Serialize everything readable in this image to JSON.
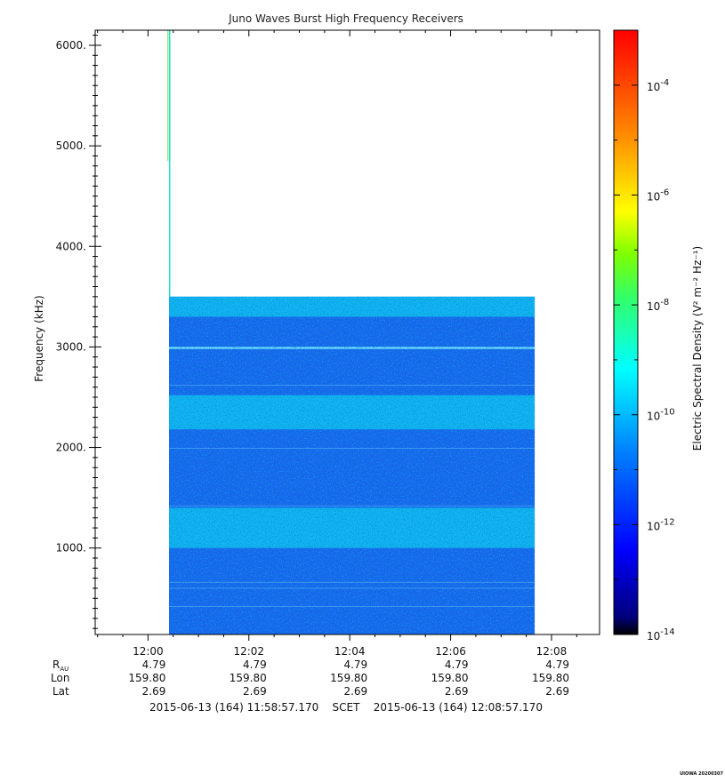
{
  "chart_data": {
    "type": "heatmap",
    "title": "Juno Waves Burst High Frequency Receivers",
    "ylabel": "Frequency (kHz)",
    "colorbar_label": "Electric Spectral Density (V² m⁻² Hz⁻¹)",
    "xlim": [
      "11:58:57.170",
      "12:08:57.170"
    ],
    "ylim": [
      140,
      6150
    ],
    "x_ticks": [
      "12:00",
      "12:02",
      "12:04",
      "12:06",
      "12:08"
    ],
    "y_ticks": [
      "1000.",
      "2000.",
      "3000.",
      "4000.",
      "5000.",
      "6000."
    ],
    "y_tick_values": [
      1000,
      2000,
      3000,
      4000,
      5000,
      6000
    ],
    "colorbar": {
      "scale": "log",
      "range": [
        1e-14,
        0.001
      ],
      "tick_base": "10",
      "tick_exponents": [
        "-14",
        "-12",
        "-10",
        "-8",
        "-6",
        "-4"
      ],
      "colormap": [
        "#00007f",
        "#0000ff",
        "#007fff",
        "#00ffff",
        "#7fff7f",
        "#ffff00",
        "#ff7f00",
        "#ff0000"
      ]
    },
    "data_region": {
      "time_start": "12:00:25",
      "time_end": "12:07:40",
      "freq_min_khz": 140,
      "freq_max_khz": 3500,
      "narrow_column_freq_max_khz": 6150
    },
    "bands": [
      {
        "freq_khz": [
          2180,
          2520
        ],
        "level": "1e-11"
      },
      {
        "freq_khz": [
          1000,
          1400
        ],
        "level": "1e-11"
      },
      {
        "freq_khz": [
          3300,
          3500
        ],
        "level": "1e-11.5"
      },
      {
        "freq_khz": [
          2980,
          3000
        ],
        "level": "1e-10.5",
        "note": "narrow line"
      }
    ],
    "ephemeris": {
      "labels": {
        "r_main": "R",
        "r_sub": "AU",
        "lon": "Lon",
        "lat": "Lat"
      },
      "columns": [
        {
          "time": "12:00",
          "r": "4.79",
          "lon": "159.80",
          "lat": "2.69"
        },
        {
          "time": "12:02",
          "r": "4.79",
          "lon": "159.80",
          "lat": "2.69"
        },
        {
          "time": "12:04",
          "r": "4.79",
          "lon": "159.80",
          "lat": "2.69"
        },
        {
          "time": "12:06",
          "r": "4.79",
          "lon": "159.80",
          "lat": "2.69"
        },
        {
          "time": "12:08",
          "r": "4.79",
          "lon": "159.80",
          "lat": "2.69"
        }
      ]
    },
    "time_range_text": "2015-06-13 (164) 11:58:57.170    SCET    2015-06-13 (164) 12:08:57.170",
    "stamp": "UIOWA 20200307"
  }
}
